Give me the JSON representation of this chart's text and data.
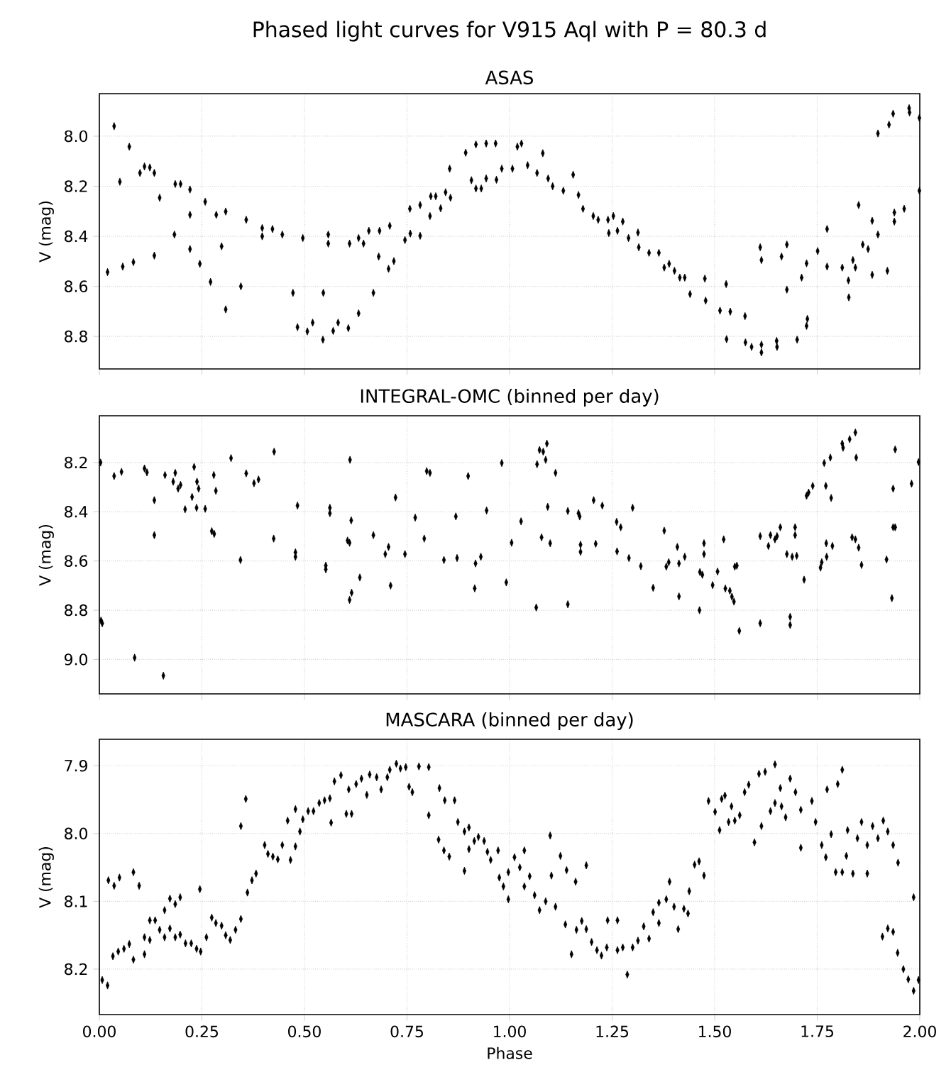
{
  "chart_data": [
    {
      "type": "scatter",
      "title": "Phased light curves for V915 Aql with P = 80.3 d",
      "subtitle": "ASAS",
      "ylabel": "V (mag)",
      "color": "#000000",
      "marker": "diamond",
      "grid": true,
      "tick_labels": "y",
      "xlim": [
        0,
        2
      ],
      "xticks": [
        {
          "value": 0,
          "label": null
        },
        {
          "value": 0.25,
          "label": null
        },
        {
          "value": 0.5,
          "label": null
        },
        {
          "value": 0.75,
          "label": null
        },
        {
          "value": 1,
          "label": null
        },
        {
          "value": 1.25,
          "label": null
        },
        {
          "value": 1.5,
          "label": null
        },
        {
          "value": 1.75,
          "label": null
        },
        {
          "value": 2,
          "label": null
        }
      ],
      "ylim": [
        8.93,
        7.83
      ],
      "yticks": [
        {
          "value": 8.0,
          "label": "8.0"
        },
        {
          "value": 8.2,
          "label": "8.2"
        },
        {
          "value": 8.4,
          "label": "8.4"
        },
        {
          "value": 8.6,
          "label": "8.6"
        },
        {
          "value": 8.8,
          "label": "8.8"
        }
      ],
      "x": [
        0.02,
        0.036,
        0.05,
        0.057,
        0.073,
        0.083,
        0.099,
        0.11,
        0.123,
        0.134,
        0.134,
        0.147,
        0.183,
        0.185,
        0.198,
        0.221,
        0.221,
        0.221,
        0.245,
        0.258,
        0.271,
        0.285,
        0.298,
        0.308,
        0.308,
        0.345,
        0.358,
        0.397,
        0.397,
        0.422,
        0.446,
        0.472,
        0.483,
        0.496,
        0.507,
        0.52,
        0.545,
        0.546,
        0.558,
        0.558,
        0.57,
        0.582,
        0.607,
        0.61,
        0.632,
        0.644,
        0.632,
        0.657,
        0.668,
        0.681,
        0.683,
        0.705,
        0.708,
        0.718,
        0.745,
        0.757,
        0.758,
        0.782,
        0.782,
        0.806,
        0.808,
        0.82,
        0.832,
        0.844,
        0.856,
        0.854,
        0.893,
        0.907,
        0.918,
        0.918,
        0.931,
        0.943,
        0.943,
        0.966,
        0.968,
        0.981,
        1.007,
        1.019,
        1.029,
        1.044,
        1.067,
        1.081,
        1.094,
        1.105,
        1.131,
        1.155,
        1.168,
        1.179,
        1.204,
        1.216,
        1.24,
        1.242,
        1.253,
        1.263,
        1.276,
        1.29,
        1.313,
        1.315,
        1.34,
        1.364,
        1.377,
        1.389,
        1.402,
        1.415,
        1.427,
        1.44,
        1.476,
        1.478,
        1.513,
        1.528,
        1.529,
        1.538,
        1.574,
        1.575,
        1.59,
        1.614,
        1.614,
        1.611,
        1.614,
        1.651,
        1.652,
        1.663,
        1.676,
        1.676,
        1.701,
        1.712,
        1.724,
        1.724,
        1.726,
        1.751,
        1.774,
        1.774,
        1.811,
        1.826,
        1.827,
        1.837,
        1.843,
        1.851,
        1.861,
        1.874,
        1.884,
        1.884,
        1.898,
        1.898,
        1.921,
        1.925,
        1.935,
        1.938,
        1.938,
        1.962,
        1.974,
        1.975,
        1.999,
        1.999
      ],
      "values": [
        8.543,
        7.96,
        8.182,
        8.521,
        8.042,
        8.503,
        8.147,
        8.121,
        8.125,
        8.147,
        8.477,
        8.246,
        8.393,
        8.191,
        8.191,
        8.213,
        8.314,
        8.451,
        8.51,
        8.262,
        8.582,
        8.314,
        8.44,
        8.301,
        8.692,
        8.6,
        8.334,
        8.367,
        8.4,
        8.371,
        8.393,
        8.626,
        8.763,
        8.407,
        8.78,
        8.745,
        8.813,
        8.626,
        8.393,
        8.429,
        8.778,
        8.745,
        8.767,
        8.429,
        8.407,
        8.429,
        8.708,
        8.378,
        8.626,
        8.481,
        8.378,
        8.53,
        8.358,
        8.499,
        8.415,
        8.29,
        8.389,
        8.275,
        8.398,
        8.319,
        8.24,
        8.24,
        8.288,
        8.224,
        8.246,
        8.13,
        8.066,
        8.176,
        8.033,
        8.209,
        8.209,
        8.029,
        8.169,
        8.029,
        8.174,
        8.13,
        8.13,
        8.042,
        8.029,
        8.116,
        8.147,
        8.068,
        8.169,
        8.2,
        8.218,
        8.154,
        8.235,
        8.29,
        8.319,
        8.334,
        8.334,
        8.387,
        8.319,
        8.378,
        8.341,
        8.407,
        8.385,
        8.444,
        8.466,
        8.466,
        8.525,
        8.51,
        8.538,
        8.565,
        8.565,
        8.631,
        8.569,
        8.657,
        8.697,
        8.591,
        8.811,
        8.701,
        8.719,
        8.824,
        8.842,
        8.833,
        8.864,
        8.444,
        8.495,
        8.818,
        8.842,
        8.481,
        8.433,
        8.613,
        8.813,
        8.565,
        8.508,
        8.758,
        8.73,
        8.459,
        8.371,
        8.521,
        8.525,
        8.576,
        8.644,
        8.495,
        8.525,
        8.275,
        8.433,
        8.451,
        8.554,
        8.338,
        8.393,
        7.989,
        8.538,
        7.954,
        7.91,
        8.341,
        8.305,
        8.29,
        7.888,
        7.905,
        7.927,
        8.218
      ]
    },
    {
      "type": "scatter",
      "title": "INTEGRAL-OMC (binned per day)",
      "ylabel": "V (mag)",
      "color": "#000000",
      "marker": "diamond",
      "grid": true,
      "tick_labels": "y",
      "xlim": [
        0,
        2
      ],
      "xticks": [
        {
          "value": 0,
          "label": null
        },
        {
          "value": 0.25,
          "label": null
        },
        {
          "value": 0.5,
          "label": null
        },
        {
          "value": 0.75,
          "label": null
        },
        {
          "value": 1,
          "label": null
        },
        {
          "value": 1.25,
          "label": null
        },
        {
          "value": 1.5,
          "label": null
        },
        {
          "value": 1.75,
          "label": null
        },
        {
          "value": 2,
          "label": null
        }
      ],
      "ylim": [
        9.14,
        8.01
      ],
      "yticks": [
        {
          "value": 8.2,
          "label": "8.2"
        },
        {
          "value": 8.4,
          "label": "8.4"
        },
        {
          "value": 8.6,
          "label": "8.6"
        },
        {
          "value": 8.8,
          "label": "8.8"
        },
        {
          "value": 9.0,
          "label": "9.0"
        }
      ],
      "x": [
        0.003,
        0.004,
        0.007,
        0.036,
        0.054,
        0.086,
        0.11,
        0.116,
        0.134,
        0.134,
        0.156,
        0.16,
        0.18,
        0.185,
        0.192,
        0.198,
        0.209,
        0.226,
        0.231,
        0.238,
        0.237,
        0.242,
        0.258,
        0.274,
        0.28,
        0.279,
        0.284,
        0.321,
        0.344,
        0.358,
        0.377,
        0.388,
        0.425,
        0.426,
        0.483,
        0.478,
        0.478,
        0.552,
        0.552,
        0.562,
        0.562,
        0.605,
        0.61,
        0.61,
        0.611,
        0.614,
        0.615,
        0.635,
        0.668,
        0.697,
        0.705,
        0.71,
        0.722,
        0.745,
        0.77,
        0.792,
        0.798,
        0.806,
        0.84,
        0.869,
        0.872,
        0.899,
        0.915,
        0.917,
        0.93,
        0.944,
        0.981,
        0.992,
        1.005,
        1.028,
        1.065,
        1.067,
        1.073,
        1.078,
        1.082,
        1.088,
        1.091,
        1.093,
        1.099,
        1.112,
        1.142,
        1.142,
        1.168,
        1.171,
        1.173,
        1.173,
        1.205,
        1.21,
        1.226,
        1.261,
        1.262,
        1.271,
        1.291,
        1.3,
        1.32,
        1.35,
        1.377,
        1.382,
        1.388,
        1.409,
        1.413,
        1.413,
        1.427,
        1.463,
        1.464,
        1.47,
        1.474,
        1.474,
        1.495,
        1.507,
        1.522,
        1.526,
        1.537,
        1.542,
        1.547,
        1.549,
        1.554,
        1.56,
        1.611,
        1.611,
        1.631,
        1.636,
        1.647,
        1.652,
        1.66,
        1.676,
        1.684,
        1.684,
        1.689,
        1.696,
        1.696,
        1.7,
        1.718,
        1.724,
        1.729,
        1.739,
        1.758,
        1.761,
        1.767,
        1.771,
        1.772,
        1.782,
        1.773,
        1.787,
        1.784,
        1.811,
        1.813,
        1.829,
        1.843,
        1.845,
        1.835,
        1.843,
        1.851,
        1.858,
        1.919,
        1.932,
        1.935,
        1.935,
        1.94,
        1.94,
        1.98,
        1.997
      ],
      "values": [
        8.2,
        8.842,
        8.853,
        8.255,
        8.238,
        8.993,
        8.224,
        8.24,
        8.353,
        8.495,
        9.066,
        8.251,
        8.278,
        8.242,
        8.306,
        8.291,
        8.39,
        8.34,
        8.218,
        8.278,
        8.384,
        8.306,
        8.388,
        8.479,
        8.49,
        8.251,
        8.315,
        8.182,
        8.596,
        8.244,
        8.284,
        8.269,
        8.509,
        8.156,
        8.375,
        8.565,
        8.583,
        8.634,
        8.619,
        8.384,
        8.406,
        8.517,
        8.526,
        8.758,
        8.189,
        8.435,
        8.729,
        8.667,
        8.495,
        8.572,
        8.543,
        8.7,
        8.342,
        8.572,
        8.424,
        8.509,
        8.235,
        8.242,
        8.596,
        8.419,
        8.588,
        8.255,
        8.711,
        8.61,
        8.583,
        8.395,
        8.202,
        8.687,
        8.526,
        8.439,
        8.789,
        8.207,
        8.149,
        8.504,
        8.156,
        8.189,
        8.123,
        8.38,
        8.528,
        8.242,
        8.776,
        8.397,
        8.406,
        8.419,
        8.534,
        8.563,
        8.353,
        8.53,
        8.375,
        8.441,
        8.561,
        8.463,
        8.588,
        8.384,
        8.621,
        8.709,
        8.477,
        8.623,
        8.605,
        8.543,
        8.744,
        8.61,
        8.583,
        8.8,
        8.645,
        8.656,
        8.572,
        8.528,
        8.698,
        8.643,
        8.512,
        8.712,
        8.721,
        8.745,
        8.765,
        8.623,
        8.619,
        8.884,
        8.499,
        8.853,
        8.539,
        8.495,
        8.512,
        8.499,
        8.463,
        8.572,
        8.827,
        8.86,
        8.583,
        8.463,
        8.495,
        8.579,
        8.676,
        8.335,
        8.322,
        8.295,
        8.627,
        8.605,
        8.202,
        8.295,
        8.528,
        8.18,
        8.583,
        8.539,
        8.344,
        8.123,
        8.14,
        8.105,
        8.078,
        8.18,
        8.504,
        8.512,
        8.546,
        8.616,
        8.594,
        8.751,
        8.306,
        8.463,
        8.463,
        8.147,
        8.286,
        8.198
      ]
    },
    {
      "type": "scatter",
      "title": "MASCARA (binned per day)",
      "xlabel": "Phase",
      "ylabel": "V (mag)",
      "color": "#000000",
      "marker": "diamond",
      "grid": true,
      "xlim": [
        0,
        2
      ],
      "xticks": [
        {
          "value": 0,
          "label": "0.00"
        },
        {
          "value": 0.25,
          "label": "0.25"
        },
        {
          "value": 0.5,
          "label": "0.50"
        },
        {
          "value": 0.75,
          "label": "0.75"
        },
        {
          "value": 1,
          "label": "1.00"
        },
        {
          "value": 1.25,
          "label": "1.25"
        },
        {
          "value": 1.5,
          "label": "1.50"
        },
        {
          "value": 1.75,
          "label": "1.75"
        },
        {
          "value": 2,
          "label": "2.00"
        }
      ],
      "ylim": [
        8.267,
        7.861
      ],
      "yticks": [
        {
          "value": 7.9,
          "label": "7.9"
        },
        {
          "value": 8.0,
          "label": "8.0"
        },
        {
          "value": 8.1,
          "label": "8.1"
        },
        {
          "value": 8.2,
          "label": "8.2"
        }
      ],
      "x": [
        0.007,
        0.02,
        0.022,
        0.036,
        0.049,
        0.033,
        0.046,
        0.06,
        0.073,
        0.083,
        0.083,
        0.097,
        0.11,
        0.11,
        0.123,
        0.123,
        0.136,
        0.147,
        0.159,
        0.159,
        0.172,
        0.172,
        0.185,
        0.185,
        0.197,
        0.197,
        0.21,
        0.224,
        0.237,
        0.245,
        0.247,
        0.261,
        0.274,
        0.284,
        0.298,
        0.308,
        0.319,
        0.332,
        0.345,
        0.345,
        0.357,
        0.361,
        0.372,
        0.382,
        0.403,
        0.411,
        0.423,
        0.435,
        0.446,
        0.459,
        0.466,
        0.478,
        0.478,
        0.489,
        0.496,
        0.509,
        0.522,
        0.536,
        0.549,
        0.562,
        0.565,
        0.573,
        0.589,
        0.602,
        0.608,
        0.615,
        0.626,
        0.639,
        0.652,
        0.659,
        0.676,
        0.687,
        0.702,
        0.708,
        0.724,
        0.734,
        0.747,
        0.755,
        0.763,
        0.779,
        0.803,
        0.803,
        0.827,
        0.829,
        0.84,
        0.842,
        0.853,
        0.866,
        0.874,
        0.89,
        0.89,
        0.901,
        0.901,
        0.914,
        0.924,
        0.938,
        0.946,
        0.954,
        0.972,
        0.975,
        0.985,
        0.997,
        0.997,
        1.012,
        1.025,
        1.036,
        1.036,
        1.049,
        1.061,
        1.073,
        1.088,
        1.099,
        1.102,
        1.112,
        1.124,
        1.136,
        1.139,
        1.151,
        1.161,
        1.163,
        1.176,
        1.187,
        1.187,
        1.2,
        1.213,
        1.224,
        1.237,
        1.239,
        1.263,
        1.263,
        1.276,
        1.287,
        1.3,
        1.313,
        1.327,
        1.34,
        1.35,
        1.364,
        1.364,
        1.382,
        1.39,
        1.401,
        1.411,
        1.425,
        1.435,
        1.438,
        1.451,
        1.462,
        1.474,
        1.485,
        1.501,
        1.512,
        1.517,
        1.525,
        1.534,
        1.541,
        1.549,
        1.561,
        1.573,
        1.583,
        1.597,
        1.608,
        1.614,
        1.623,
        1.636,
        1.647,
        1.647,
        1.66,
        1.663,
        1.673,
        1.684,
        1.697,
        1.71,
        1.71,
        1.737,
        1.746,
        1.761,
        1.774,
        1.771,
        1.784,
        1.795,
        1.8,
        1.811,
        1.811,
        1.821,
        1.824,
        1.837,
        1.848,
        1.858,
        1.872,
        1.872,
        1.885,
        1.898,
        1.909,
        1.911,
        1.922,
        1.922,
        1.935,
        1.935,
        1.946,
        1.947,
        1.96,
        1.972,
        1.985,
        1.985,
        1.997
      ],
      "values": [
        8.216,
        8.224,
        8.069,
        8.077,
        8.065,
        8.181,
        8.174,
        8.17,
        8.163,
        8.186,
        8.057,
        8.077,
        8.178,
        8.153,
        8.157,
        8.128,
        8.128,
        8.142,
        8.153,
        8.113,
        8.14,
        8.096,
        8.104,
        8.153,
        8.094,
        8.149,
        8.162,
        8.162,
        8.17,
        8.082,
        8.174,
        8.153,
        8.124,
        8.132,
        8.136,
        8.15,
        8.157,
        8.142,
        8.126,
        7.989,
        7.949,
        8.087,
        8.069,
        8.059,
        8.017,
        8.03,
        8.034,
        8.038,
        8.017,
        7.981,
        8.039,
        8.019,
        7.964,
        7.997,
        7.979,
        7.967,
        7.967,
        7.955,
        7.951,
        7.948,
        7.984,
        7.923,
        7.914,
        7.971,
        7.935,
        7.971,
        7.927,
        7.919,
        7.943,
        7.913,
        7.917,
        7.935,
        7.917,
        7.906,
        7.897,
        7.904,
        7.902,
        7.931,
        7.939,
        7.901,
        7.902,
        7.973,
        8.009,
        7.933,
        8.025,
        7.951,
        8.034,
        7.951,
        7.983,
        7.997,
        8.055,
        7.991,
        8.023,
        8.011,
        8.005,
        8.011,
        8.027,
        8.039,
        8.025,
        8.065,
        8.078,
        8.097,
        8.057,
        8.035,
        8.05,
        8.078,
        8.025,
        8.063,
        8.091,
        8.113,
        8.1,
        8.003,
        8.062,
        8.108,
        8.033,
        8.134,
        8.054,
        8.178,
        8.071,
        8.142,
        8.129,
        8.047,
        8.141,
        8.16,
        8.172,
        8.18,
        8.168,
        8.128,
        8.172,
        8.128,
        8.168,
        8.208,
        8.168,
        8.158,
        8.137,
        8.155,
        8.116,
        8.132,
        8.102,
        8.097,
        8.071,
        8.108,
        8.141,
        8.111,
        8.118,
        8.085,
        8.046,
        8.041,
        8.062,
        7.952,
        7.968,
        7.995,
        7.949,
        7.944,
        7.983,
        7.96,
        7.981,
        7.973,
        7.939,
        7.928,
        8.013,
        7.912,
        7.989,
        7.909,
        7.967,
        7.898,
        7.955,
        7.933,
        7.96,
        7.976,
        7.919,
        7.939,
        8.021,
        7.965,
        7.952,
        7.983,
        8.017,
        7.935,
        8.035,
        8.001,
        8.057,
        7.927,
        7.906,
        8.057,
        8.033,
        7.995,
        8.059,
        8.007,
        7.983,
        8.017,
        8.059,
        7.989,
        8.007,
        8.152,
        7.981,
        8.14,
        7.997,
        8.145,
        8.017,
        8.176,
        8.043,
        8.2,
        8.215,
        8.232,
        8.094,
        8.216
      ]
    }
  ]
}
